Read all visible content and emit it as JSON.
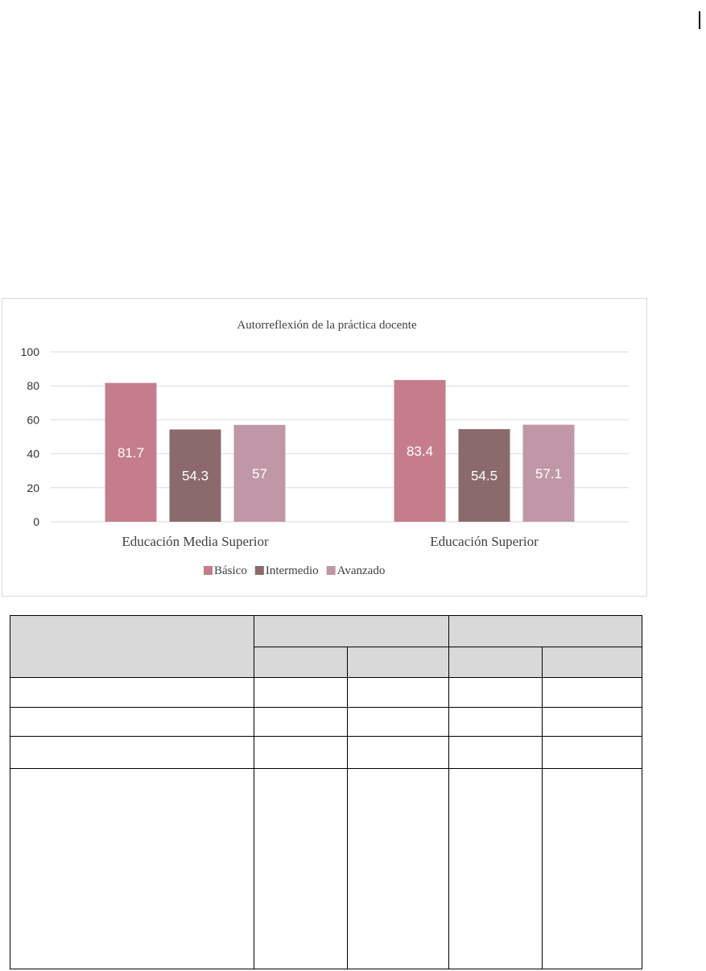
{
  "chart_data": {
    "type": "bar",
    "title": "Autorreflexión de la práctica docente",
    "categories": [
      "Educación Media Superior",
      "Educación Superior"
    ],
    "series": [
      {
        "name": "Básico",
        "values": [
          81.7,
          83.4
        ],
        "labels": [
          "81.7",
          "83.4"
        ],
        "color": "#c67d8b"
      },
      {
        "name": "Intermedio",
        "values": [
          54.3,
          54.5
        ],
        "labels": [
          "54.3",
          "54.5"
        ],
        "color": "#8c6a6c"
      },
      {
        "name": "Avanzado",
        "values": [
          57,
          57.1
        ],
        "labels": [
          "57",
          "57.1"
        ],
        "color": "#c097a6"
      }
    ],
    "ylim": [
      0,
      100
    ],
    "yticks": [
      "0",
      "20",
      "40",
      "60",
      "80",
      "100"
    ],
    "grid": true,
    "legend_position": "bottom"
  },
  "table": {
    "header_shade": "#d9d9d9",
    "rows": [
      [
        "",
        "",
        "",
        "",
        ""
      ],
      [
        "",
        "",
        "",
        "",
        ""
      ],
      [
        "",
        "",
        "",
        "",
        ""
      ],
      [
        "",
        "",
        "",
        "",
        ""
      ]
    ]
  }
}
